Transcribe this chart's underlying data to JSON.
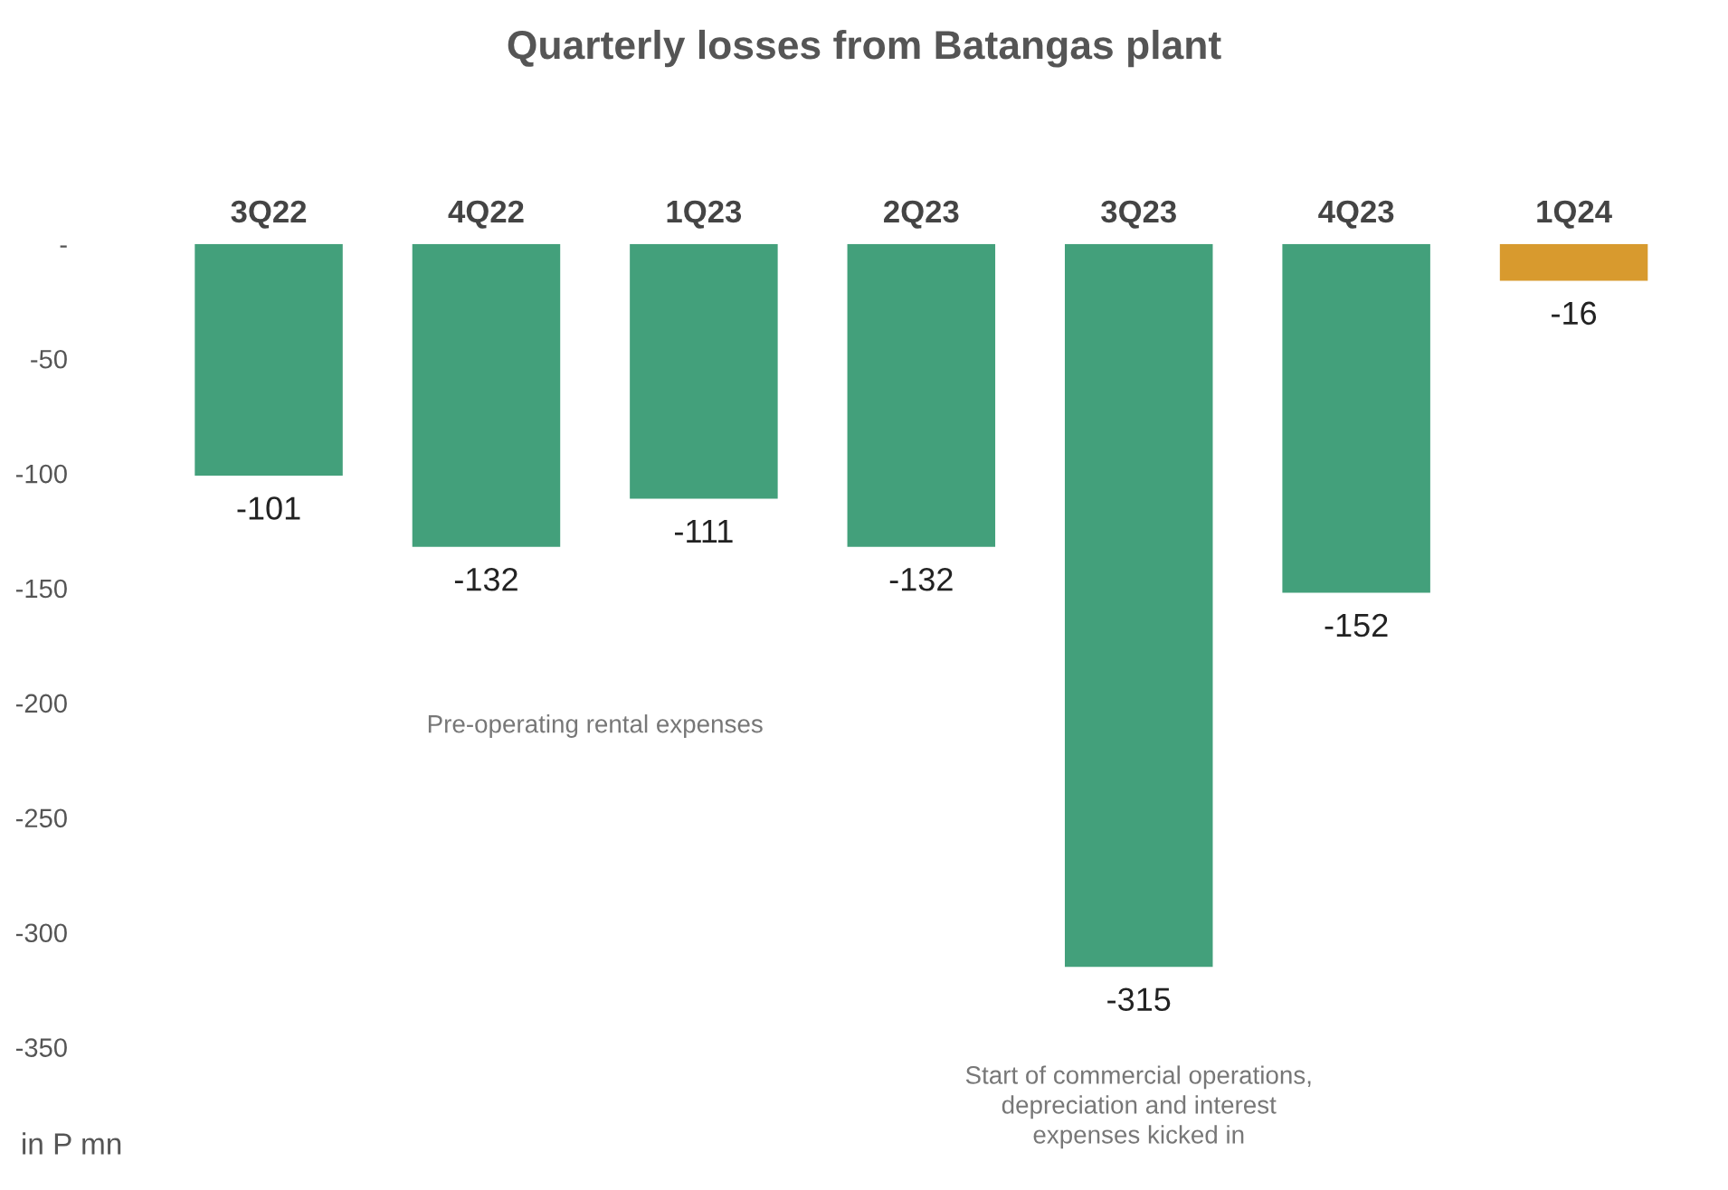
{
  "chart_data": {
    "type": "bar",
    "title": "Quarterly losses from Batangas plant",
    "ylabel": "in P mn",
    "categories": [
      "3Q22",
      "4Q22",
      "1Q23",
      "2Q23",
      "3Q23",
      "4Q23",
      "1Q24"
    ],
    "values": [
      -101,
      -132,
      -111,
      -132,
      -315,
      -152,
      -16
    ],
    "colors": [
      "#43a07b",
      "#43a07b",
      "#43a07b",
      "#43a07b",
      "#43a07b",
      "#43a07b",
      "#d89a2e"
    ],
    "data_labels": true,
    "grid": false,
    "legend": false,
    "ylim": [
      -350,
      0
    ],
    "yticks": [
      {
        "value": 0,
        "label": "-"
      },
      -50,
      -100,
      -150,
      -200,
      -250,
      -300,
      -350
    ],
    "annotations": [
      "Pre-operating rental expenses",
      "Start of commercial operations,\ndepreciation and interest\nexpenses kicked in"
    ]
  }
}
